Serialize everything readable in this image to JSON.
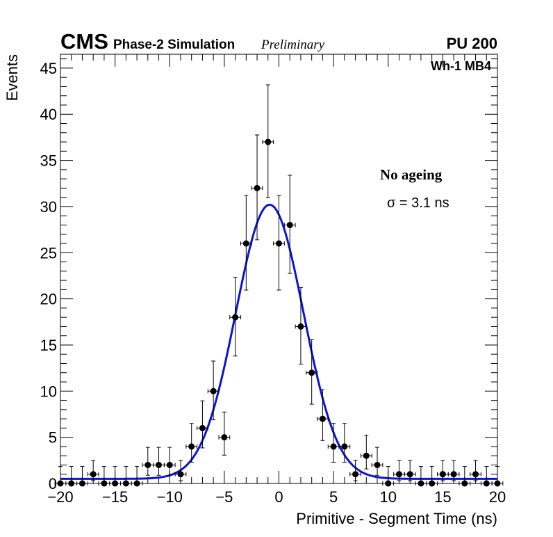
{
  "header": {
    "experiment": "CMS",
    "simulation": "Phase-2 Simulation",
    "status": "Preliminary",
    "pileup": "PU 200"
  },
  "chart_data": {
    "type": "scatter",
    "title": "",
    "xlabel": "Primitive - Segment Time (ns)",
    "ylabel": "Events",
    "xlim": [
      -20,
      20
    ],
    "ylim": [
      0,
      46.5
    ],
    "x_ticks": [
      -20,
      -15,
      -10,
      -5,
      0,
      5,
      10,
      15,
      20
    ],
    "x_tick_labels": [
      "−20",
      "−15",
      "−10",
      "−5",
      "0",
      "5",
      "10",
      "15",
      "20"
    ],
    "y_ticks": [
      0,
      5,
      10,
      15,
      20,
      25,
      30,
      35,
      40,
      45
    ],
    "y_tick_labels": [
      "0",
      "5",
      "10",
      "15",
      "20",
      "25",
      "30",
      "35",
      "40",
      "45"
    ],
    "bin_width": 1,
    "series": [
      {
        "name": "Data",
        "style": "points-with-errors",
        "color": "#000000",
        "x": [
          -20,
          -19,
          -18,
          -17,
          -16,
          -15,
          -14,
          -13,
          -12,
          -11,
          -10,
          -9,
          -8,
          -7,
          -6,
          -5,
          -4,
          -3,
          -2,
          -1,
          0,
          1,
          2,
          3,
          4,
          5,
          6,
          7,
          8,
          9,
          10,
          11,
          12,
          13,
          14,
          15,
          16,
          17,
          18,
          19,
          20
        ],
        "values": [
          0,
          0,
          0,
          1,
          0,
          0,
          0,
          0,
          2,
          2,
          2,
          1,
          4,
          6,
          10,
          5,
          18,
          26,
          32,
          37,
          26,
          28,
          17,
          12,
          7,
          4,
          4,
          1,
          3,
          2,
          0,
          1,
          1,
          0,
          0,
          1,
          1,
          0,
          1,
          0,
          0
        ],
        "y_err_note": "Poisson errors"
      },
      {
        "name": "Gaussian fit",
        "style": "line",
        "color": "#0a14d6",
        "function": "gauss+const",
        "amplitude": 29.7,
        "mean": -0.85,
        "sigma": 3.1,
        "constant": 0.5
      }
    ],
    "annotations": {
      "region": "Wh-1 MB4",
      "condition": "No ageing",
      "sigma_label": "σ = 3.1 ns"
    }
  }
}
